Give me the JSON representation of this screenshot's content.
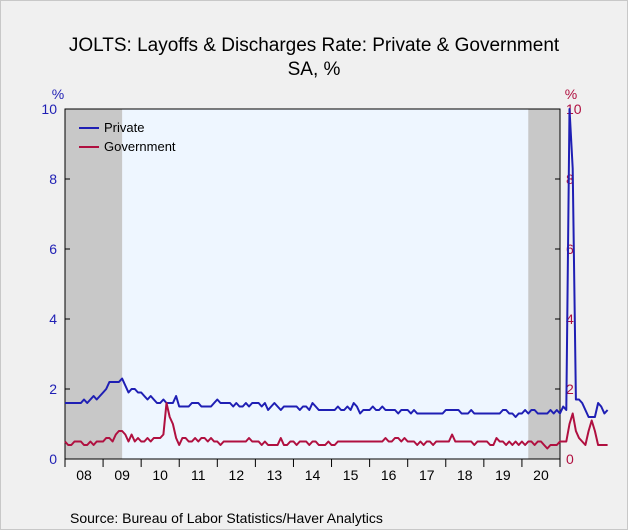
{
  "chart_data": {
    "type": "line",
    "title": "JOLTS: Layoffs & Discharges Rate: Private & Government",
    "subtitle": "SA, %",
    "left_axis": {
      "unit_label": "%",
      "ylim": [
        0,
        10
      ],
      "ticks": [
        "0",
        "2",
        "4",
        "6",
        "8",
        "10"
      ],
      "color": "#1f1fb4"
    },
    "right_axis": {
      "unit_label": "%",
      "ylim": [
        0,
        10
      ],
      "ticks": [
        "0",
        "2",
        "4",
        "6",
        "8",
        "10"
      ],
      "color": "#b01040"
    },
    "x_ticks": [
      "08",
      "09",
      "10",
      "11",
      "12",
      "13",
      "14",
      "15",
      "16",
      "17",
      "18",
      "19",
      "20"
    ],
    "x_start": 2008.0,
    "x_step": 0.0833333,
    "x_range": [
      2008.0,
      2021.0
    ],
    "recessions": [
      [
        2008.0,
        2009.5
      ],
      [
        2020.1667,
        2021.0
      ]
    ],
    "plot_background": "#eef6ff",
    "recession_color": "#c8c8c8",
    "legend_position": "top-left",
    "series": [
      {
        "name": "Private",
        "color": "#1f1fb4",
        "values": [
          1.6,
          1.6,
          1.6,
          1.6,
          1.6,
          1.6,
          1.7,
          1.6,
          1.7,
          1.8,
          1.7,
          1.8,
          1.9,
          2.0,
          2.2,
          2.2,
          2.2,
          2.2,
          2.3,
          2.1,
          1.9,
          2.0,
          2.0,
          1.9,
          1.9,
          1.8,
          1.7,
          1.8,
          1.7,
          1.6,
          1.6,
          1.7,
          1.6,
          1.6,
          1.6,
          1.8,
          1.5,
          1.5,
          1.5,
          1.5,
          1.6,
          1.6,
          1.6,
          1.5,
          1.5,
          1.5,
          1.5,
          1.6,
          1.7,
          1.6,
          1.6,
          1.6,
          1.6,
          1.5,
          1.6,
          1.5,
          1.5,
          1.6,
          1.5,
          1.6,
          1.6,
          1.6,
          1.5,
          1.6,
          1.4,
          1.5,
          1.6,
          1.5,
          1.4,
          1.5,
          1.5,
          1.5,
          1.5,
          1.5,
          1.4,
          1.5,
          1.5,
          1.4,
          1.6,
          1.5,
          1.4,
          1.4,
          1.4,
          1.4,
          1.4,
          1.4,
          1.5,
          1.4,
          1.4,
          1.5,
          1.4,
          1.6,
          1.5,
          1.3,
          1.4,
          1.4,
          1.4,
          1.5,
          1.4,
          1.4,
          1.5,
          1.4,
          1.4,
          1.4,
          1.4,
          1.3,
          1.4,
          1.4,
          1.4,
          1.3,
          1.4,
          1.3,
          1.3,
          1.3,
          1.3,
          1.3,
          1.3,
          1.3,
          1.3,
          1.3,
          1.4,
          1.4,
          1.4,
          1.4,
          1.4,
          1.3,
          1.3,
          1.3,
          1.4,
          1.3,
          1.3,
          1.3,
          1.3,
          1.3,
          1.3,
          1.3,
          1.3,
          1.3,
          1.4,
          1.4,
          1.3,
          1.3,
          1.2,
          1.3,
          1.3,
          1.4,
          1.3,
          1.4,
          1.4,
          1.3,
          1.3,
          1.3,
          1.3,
          1.4,
          1.3,
          1.4,
          1.3,
          1.5,
          1.4,
          10.0,
          8.3,
          1.7,
          1.7,
          1.6,
          1.4,
          1.2,
          1.2,
          1.2,
          1.6,
          1.5,
          1.3,
          1.4
        ]
      },
      {
        "name": "Government",
        "color": "#b01040",
        "values": [
          0.5,
          0.4,
          0.4,
          0.5,
          0.5,
          0.5,
          0.4,
          0.4,
          0.5,
          0.4,
          0.5,
          0.5,
          0.5,
          0.6,
          0.6,
          0.5,
          0.7,
          0.8,
          0.8,
          0.7,
          0.5,
          0.7,
          0.5,
          0.6,
          0.5,
          0.5,
          0.6,
          0.5,
          0.6,
          0.6,
          0.6,
          0.7,
          1.6,
          1.2,
          1.0,
          0.6,
          0.4,
          0.6,
          0.6,
          0.5,
          0.5,
          0.6,
          0.5,
          0.6,
          0.6,
          0.5,
          0.6,
          0.5,
          0.5,
          0.4,
          0.5,
          0.5,
          0.5,
          0.5,
          0.5,
          0.5,
          0.5,
          0.5,
          0.6,
          0.5,
          0.5,
          0.5,
          0.4,
          0.5,
          0.4,
          0.4,
          0.4,
          0.4,
          0.6,
          0.4,
          0.4,
          0.5,
          0.5,
          0.4,
          0.5,
          0.5,
          0.5,
          0.4,
          0.5,
          0.5,
          0.4,
          0.4,
          0.4,
          0.5,
          0.4,
          0.4,
          0.5,
          0.5,
          0.5,
          0.5,
          0.5,
          0.5,
          0.5,
          0.5,
          0.5,
          0.5,
          0.5,
          0.5,
          0.5,
          0.5,
          0.5,
          0.6,
          0.5,
          0.5,
          0.6,
          0.6,
          0.5,
          0.6,
          0.5,
          0.5,
          0.5,
          0.4,
          0.5,
          0.4,
          0.5,
          0.5,
          0.4,
          0.5,
          0.5,
          0.5,
          0.5,
          0.5,
          0.7,
          0.5,
          0.5,
          0.5,
          0.5,
          0.5,
          0.5,
          0.4,
          0.5,
          0.5,
          0.5,
          0.5,
          0.4,
          0.4,
          0.6,
          0.5,
          0.5,
          0.4,
          0.5,
          0.4,
          0.5,
          0.4,
          0.5,
          0.4,
          0.5,
          0.5,
          0.4,
          0.5,
          0.5,
          0.4,
          0.3,
          0.4,
          0.4,
          0.4,
          0.5,
          0.5,
          0.5,
          1.0,
          1.3,
          0.8,
          0.6,
          0.5,
          0.4,
          0.8,
          1.1,
          0.8,
          0.4,
          0.4,
          0.4,
          0.4
        ]
      }
    ]
  },
  "source": "Source:  Bureau of Labor Statistics/Haver Analytics"
}
